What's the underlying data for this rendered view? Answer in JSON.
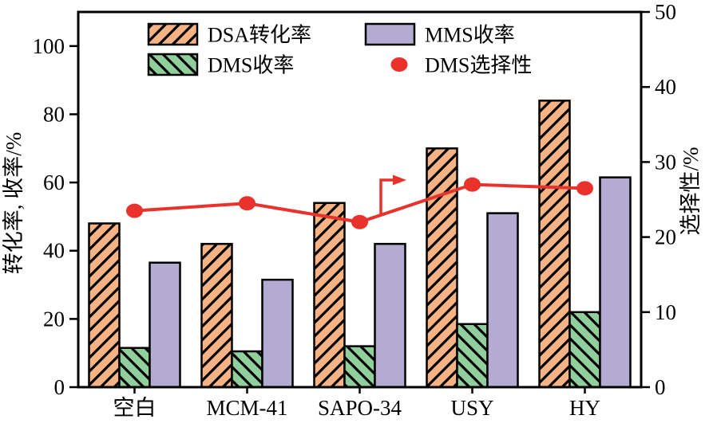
{
  "figure": {
    "background": "#ffffff",
    "frame_color": "#000000"
  },
  "chart_data": {
    "type": "bar",
    "title": "",
    "categories": [
      "空白",
      "MCM-41",
      "SAPO-34",
      "USY",
      "HY"
    ],
    "series": [
      {
        "name": "DSA转化率",
        "type": "bar",
        "axis": "left",
        "color": "#F5B285",
        "hatch": "/",
        "values": [
          48,
          42,
          54,
          70,
          84
        ]
      },
      {
        "name": "DMS收率",
        "type": "bar",
        "axis": "left",
        "color": "#90CF9C",
        "hatch": "\\",
        "values": [
          11.5,
          10.5,
          12,
          18.5,
          22
        ]
      },
      {
        "name": "MMS收率",
        "type": "bar",
        "axis": "left",
        "color": "#B3ABD1",
        "hatch": "",
        "values": [
          36.5,
          31.5,
          42,
          51,
          61.5
        ]
      },
      {
        "name": "DMS选择性",
        "type": "line",
        "axis": "right",
        "color": "#E8322B",
        "values": [
          23.5,
          24.5,
          22,
          27,
          26.5
        ]
      }
    ],
    "left_axis": {
      "label": "转化率, 收率/%",
      "ticks": [
        0,
        20,
        40,
        60,
        80,
        100
      ],
      "range": [
        0,
        110
      ]
    },
    "right_axis": {
      "label": "选择性/%",
      "ticks": [
        0,
        10,
        20,
        30,
        40,
        50
      ],
      "range": [
        0,
        50
      ]
    },
    "legend": {
      "position": "top-left-inside",
      "columns": 2,
      "entries": [
        "DSA转化率",
        "DMS收率",
        "MMS收率",
        "DMS选择性"
      ]
    },
    "grid": false,
    "annotation_arrow": {
      "meaning": "points-to-right-axis",
      "color": "#E8322B"
    }
  }
}
